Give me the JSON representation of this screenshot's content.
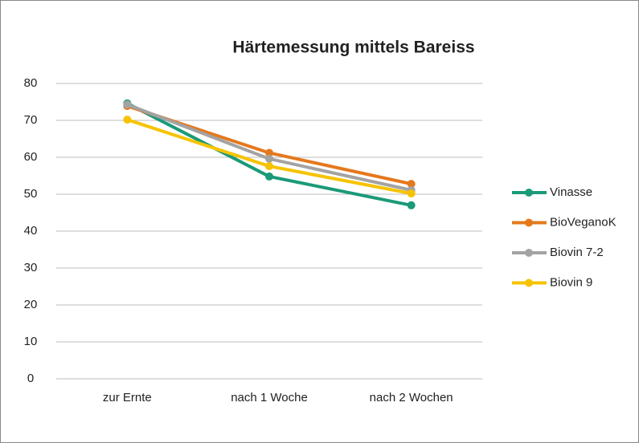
{
  "chart_data": {
    "type": "line",
    "title": "Härtemessung mittels Bareiss",
    "categories": [
      "zur Ernte",
      "nach 1 Woche",
      "nach 2 Wochen"
    ],
    "series": [
      {
        "name": "Vinasse",
        "color": "#1a9a78",
        "values": [
          74.6,
          54.8,
          47
        ]
      },
      {
        "name": "BioVeganoK",
        "color": "#e5781c",
        "values": [
          73.9,
          61.2,
          52.8
        ]
      },
      {
        "name": "Biovin 7-2",
        "color": "#a3a3a3",
        "values": [
          74.3,
          59.6,
          51.1
        ]
      },
      {
        "name": "Biovin 9",
        "color": "#f7c300",
        "values": [
          70.2,
          57.6,
          50.2
        ]
      }
    ],
    "ylim": [
      0,
      80
    ],
    "yticks": [
      0,
      10,
      20,
      30,
      40,
      50,
      60,
      70,
      80
    ],
    "grid": true,
    "legend": "right"
  }
}
